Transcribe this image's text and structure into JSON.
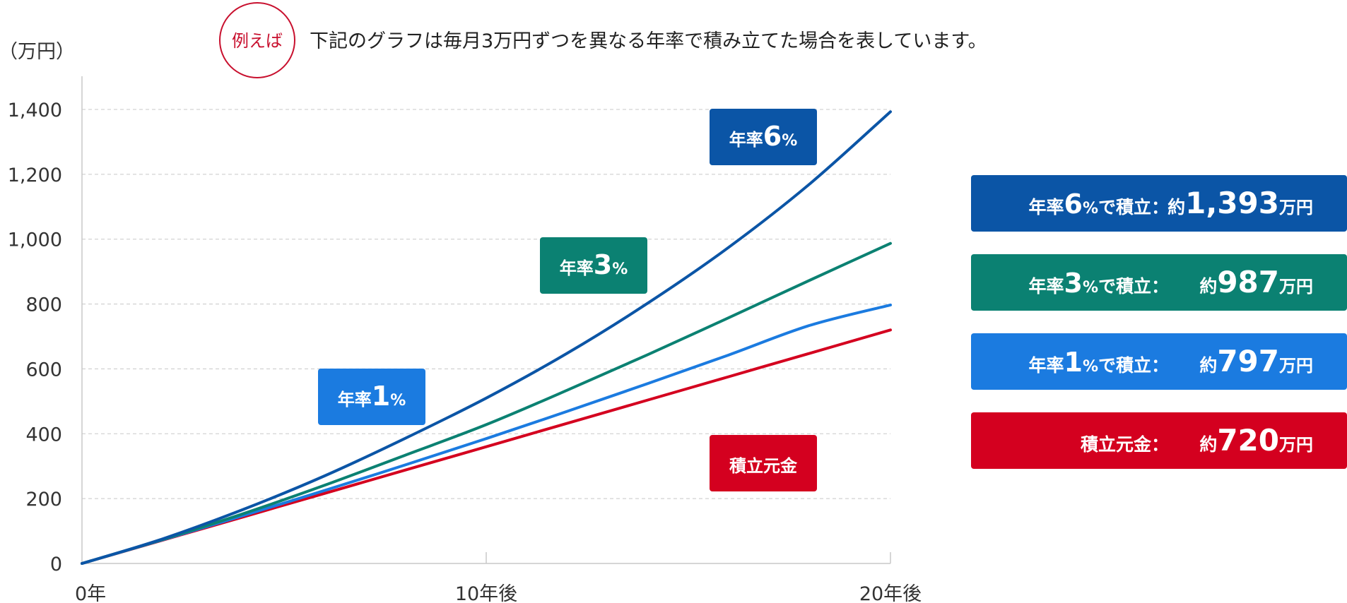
{
  "badge": "例えば",
  "caption": "下記のグラフは毎月3万円ずつを異なる年率で積み立てた場合を表しています。",
  "chart_data": {
    "type": "line",
    "ylabel": "（万円）",
    "ylim": [
      0,
      1400
    ],
    "yticks": [
      "0",
      "200",
      "400",
      "600",
      "800",
      "1,000",
      "1,200",
      "1,400"
    ],
    "yticks_values": [
      0,
      200,
      400,
      600,
      800,
      1000,
      1200,
      1400
    ],
    "xlim": [
      0,
      20
    ],
    "xticks": [
      {
        "value": 0,
        "label": "0年"
      },
      {
        "value": 10,
        "label": "10年後"
      },
      {
        "value": 20,
        "label": "20年後"
      }
    ],
    "grid": true,
    "series": [
      {
        "name": "積立元金",
        "color": "#d4001f",
        "x": [
          0,
          2,
          4,
          6,
          8,
          10,
          12,
          14,
          16,
          18,
          20
        ],
        "values": [
          0,
          72,
          144,
          216,
          288,
          360,
          432,
          504,
          576,
          648,
          720
        ]
      },
      {
        "name": "年率1%",
        "color": "#1b7be0",
        "x": [
          0,
          2,
          4,
          6,
          8,
          10,
          12,
          14,
          16,
          18,
          20
        ],
        "values": [
          0,
          73,
          148,
          225,
          304,
          385,
          469,
          555,
          643,
          734,
          797
        ]
      },
      {
        "name": "年率3%",
        "color": "#0b8172",
        "x": [
          0,
          2,
          4,
          6,
          8,
          10,
          12,
          14,
          16,
          18,
          20
        ],
        "values": [
          0,
          74,
          154,
          241,
          334,
          428,
          534,
          644,
          758,
          873,
          987
        ]
      },
      {
        "name": "年率6%",
        "color": "#0b55a6",
        "x": [
          0,
          2,
          4,
          6,
          8,
          10,
          12,
          14,
          16,
          18,
          20
        ],
        "values": [
          0,
          76,
          167,
          270,
          386,
          510,
          648,
          803,
          975,
          1170,
          1393
        ]
      }
    ],
    "annotations": [
      {
        "parts": [
          "年率",
          "6",
          "%"
        ],
        "color": "#0b55a6"
      },
      {
        "parts": [
          "年率",
          "3",
          "%"
        ],
        "color": "#0b8172"
      },
      {
        "parts": [
          "年率",
          "1",
          "%"
        ],
        "color": "#1b7be0"
      },
      {
        "parts": [
          "積立元金",
          "",
          ""
        ],
        "color": "#d4001f"
      }
    ],
    "legend": [
      {
        "prefix": "年率",
        "rate": "6",
        "pct": "%",
        "mid": "で積立：",
        "pre": "約",
        "amount": "1,393",
        "unit": "万円",
        "color": "#0b55a6"
      },
      {
        "prefix": "年率",
        "rate": "3",
        "pct": "%",
        "mid": "で積立：",
        "pre": "約",
        "amount": "987",
        "unit": "万円",
        "color": "#0b8172"
      },
      {
        "prefix": "年率",
        "rate": "1",
        "pct": "%",
        "mid": "で積立：",
        "pre": "約",
        "amount": "797",
        "unit": "万円",
        "color": "#1b7be0"
      },
      {
        "prefix": "積立元金：",
        "rate": "",
        "pct": "",
        "mid": "",
        "pre": "約",
        "amount": "720",
        "unit": "万円",
        "color": "#d4001f"
      }
    ]
  }
}
